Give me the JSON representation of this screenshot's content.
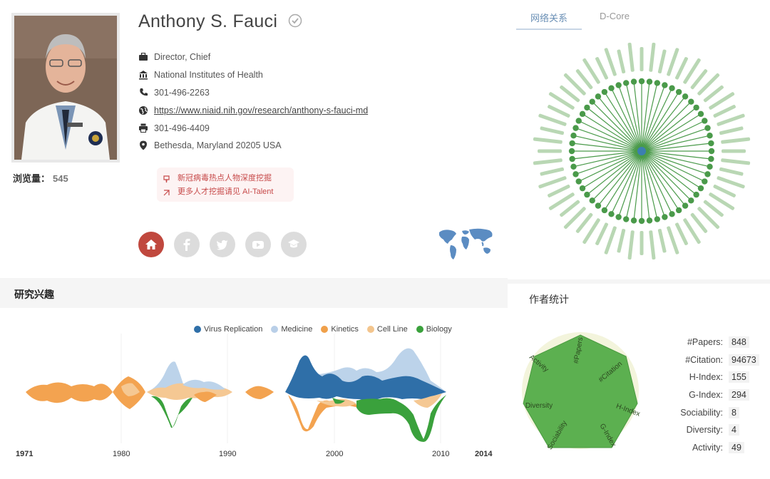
{
  "profile": {
    "name": "Anthony S. Fauci",
    "views_label": "浏览量：",
    "views": "545",
    "position": "Director, Chief",
    "organization": "National Institutes of Health",
    "phone": "301-496-2263",
    "homepage": "https://www.niaid.nih.gov/research/anthony-s-fauci-md",
    "fax": "301-496-4409",
    "address": "Bethesda, Maryland 20205 USA"
  },
  "notice": {
    "line1": "新冠病毒热点人物深度挖掘",
    "line2": "更多人才挖掘请见 AI-Talent"
  },
  "network": {
    "tabs": [
      "网络关系",
      "D-Core"
    ]
  },
  "interests": {
    "title": "研究兴趣",
    "legend": [
      {
        "label": "Virus Replication",
        "color": "#2f6fa8"
      },
      {
        "label": "Medicine",
        "color": "#b9cfe8"
      },
      {
        "label": "Kinetics",
        "color": "#f0a04a"
      },
      {
        "label": "Cell Line",
        "color": "#f3c58d"
      },
      {
        "label": "Biology",
        "color": "#3aa13c"
      }
    ],
    "years": [
      "1971",
      "1980",
      "1990",
      "2000",
      "2010",
      "2014"
    ]
  },
  "stats": {
    "title": "作者统计",
    "rows": [
      {
        "label": "#Papers:",
        "value": "848"
      },
      {
        "label": "#Citation:",
        "value": "94673"
      },
      {
        "label": "H-Index:",
        "value": "155"
      },
      {
        "label": "G-Index:",
        "value": "294"
      },
      {
        "label": "Sociability:",
        "value": "8"
      },
      {
        "label": "Diversity:",
        "value": "4"
      },
      {
        "label": "Activity:",
        "value": "49"
      }
    ],
    "radar_axes": [
      "#Papers",
      "#Citation",
      "H-Index",
      "G-Index",
      "Sociability",
      "Diversity",
      "Activity"
    ]
  },
  "colors": {
    "accent_red": "#c0483e",
    "network_green": "#4a9a4a",
    "radar_green": "#5cb050"
  }
}
